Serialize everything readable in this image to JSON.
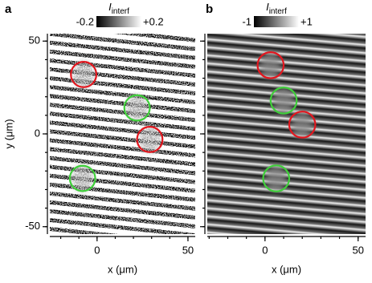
{
  "chart_data": [
    {
      "type": "image",
      "panel": "a",
      "colorbar_label": "I",
      "colorbar_label_sub": "interf",
      "colorbar_ticks": [
        {
          "value": -0.2,
          "label": "-0.2"
        },
        {
          "value": 0.2,
          "label": "+0.2"
        }
      ],
      "xlabel": "x (μm)",
      "ylabel": "y (μm)",
      "xlim": [
        -26,
        54
      ],
      "ylim": [
        -54,
        54
      ],
      "xticks": [
        0,
        50
      ],
      "yticks": [
        -50,
        0,
        50
      ],
      "noise": true,
      "circles": [
        {
          "x": -7.4,
          "y": 32,
          "r": 7,
          "color": "#e3161e"
        },
        {
          "x": 22,
          "y": 14,
          "r": 7,
          "color": "#3fcf3a"
        },
        {
          "x": 29,
          "y": -3,
          "r": 7,
          "color": "#e3161e"
        },
        {
          "x": -8,
          "y": -24,
          "r": 7,
          "color": "#3fcf3a"
        }
      ]
    },
    {
      "type": "image",
      "panel": "b",
      "colorbar_label": "I",
      "colorbar_label_sub": "interf",
      "colorbar_ticks": [
        {
          "value": -1,
          "label": "-1"
        },
        {
          "value": 1,
          "label": "+1"
        }
      ],
      "xlabel": "x (μm)",
      "xlim": [
        -31,
        54
      ],
      "ylim": [
        -54,
        54
      ],
      "xticks": [
        0,
        50
      ],
      "yticks": [
        -50,
        0,
        50
      ],
      "noise": false,
      "circles": [
        {
          "x": 3,
          "y": 37,
          "r": 7,
          "color": "#e3161e"
        },
        {
          "x": 10,
          "y": 18,
          "r": 7,
          "color": "#3fcf3a"
        },
        {
          "x": 20,
          "y": 5,
          "r": 7,
          "color": "#e3161e"
        },
        {
          "x": 6,
          "y": -24,
          "r": 7,
          "color": "#3fcf3a"
        }
      ]
    }
  ]
}
